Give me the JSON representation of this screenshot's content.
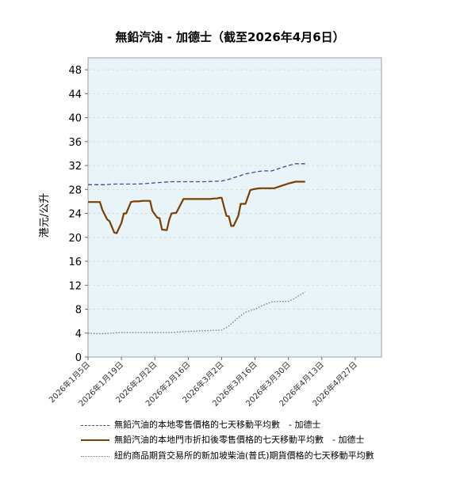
{
  "chart_data": {
    "type": "line",
    "title": "無鉛汽油 - 加德士（截至2026年4月6日）",
    "ylabel": "港元/公升",
    "xlabel": "",
    "ylim": [
      0,
      50
    ],
    "yticks": [
      0,
      4,
      8,
      12,
      16,
      20,
      24,
      28,
      32,
      36,
      40,
      44,
      48
    ],
    "x_range": [
      "2026-01-05",
      "2026-05-08"
    ],
    "xtick_dates": [
      "2026-01-05",
      "2026-01-19",
      "2026-02-02",
      "2026-02-16",
      "2026-03-02",
      "2026-03-16",
      "2026-03-30",
      "2026-04-13",
      "2026-04-27"
    ],
    "xtick_labels": [
      "2026年1月5日",
      "2026年1月19日",
      "2026年2月2日",
      "2026年2月16日",
      "2026年3月2日",
      "2026年3月16日",
      "2026年3月30日",
      "2026年4月13日",
      "2026年4月27日"
    ],
    "grid": true,
    "plot_background": "#e8f4f8",
    "series": [
      {
        "name": "無鉛汽油的本地零售價格的七天移動平均數　- 加德士",
        "color": "#44488f",
        "style": "dashed",
        "x": [
          "2026-01-05",
          "2026-01-12",
          "2026-01-16",
          "2026-01-26",
          "2026-02-02",
          "2026-02-09",
          "2026-02-16",
          "2026-02-23",
          "2026-03-02",
          "2026-03-05",
          "2026-03-09",
          "2026-03-12",
          "2026-03-16",
          "2026-03-19",
          "2026-03-23",
          "2026-03-26",
          "2026-03-30",
          "2026-04-02",
          "2026-04-06"
        ],
        "values": [
          28.8,
          28.8,
          28.9,
          28.9,
          29.1,
          29.3,
          29.3,
          29.3,
          29.4,
          29.7,
          30.2,
          30.6,
          30.9,
          31.1,
          31.1,
          31.5,
          32.0,
          32.3,
          32.3
        ]
      },
      {
        "name": "無鉛汽油的本地門市折扣後零售價格的七天移動平均數　- 加德士",
        "color": "#7b3f00",
        "style": "solid",
        "x": [
          "2026-01-05",
          "2026-01-08",
          "2026-01-10",
          "2026-01-11",
          "2026-01-13",
          "2026-01-14",
          "2026-01-16",
          "2026-01-17",
          "2026-01-19",
          "2026-01-20",
          "2026-01-21",
          "2026-01-23",
          "2026-01-24",
          "2026-01-26",
          "2026-01-28",
          "2026-01-30",
          "2026-01-31",
          "2026-02-01",
          "2026-02-03",
          "2026-02-04",
          "2026-02-05",
          "2026-02-07",
          "2026-02-08",
          "2026-02-09",
          "2026-02-11",
          "2026-02-14",
          "2026-02-18",
          "2026-02-21",
          "2026-02-23",
          "2026-02-25",
          "2026-02-27",
          "2026-02-28",
          "2026-03-01",
          "2026-03-02",
          "2026-03-04",
          "2026-03-05",
          "2026-03-06",
          "2026-03-07",
          "2026-03-09",
          "2026-03-10",
          "2026-03-12",
          "2026-03-14",
          "2026-03-16",
          "2026-03-18",
          "2026-03-21",
          "2026-03-24",
          "2026-03-27",
          "2026-03-30",
          "2026-04-02",
          "2026-04-06"
        ],
        "values": [
          25.9,
          25.9,
          25.9,
          24.6,
          23.0,
          22.7,
          20.8,
          20.7,
          22.4,
          24.0,
          24.0,
          25.9,
          26.0,
          26.0,
          26.1,
          26.1,
          26.1,
          24.4,
          23.3,
          23.2,
          21.3,
          21.2,
          22.9,
          24.0,
          24.1,
          26.4,
          26.4,
          26.4,
          26.4,
          26.4,
          26.5,
          26.5,
          26.6,
          26.6,
          23.6,
          23.5,
          21.9,
          21.9,
          23.6,
          25.6,
          25.6,
          27.9,
          28.1,
          28.2,
          28.2,
          28.2,
          28.6,
          29.0,
          29.3,
          29.3
        ]
      },
      {
        "name": "紐約商品期貨交易所的新加坡柴油(普氏)期貨價格的七天移動平均數",
        "color": "#6c7e8e",
        "style": "dotted",
        "x": [
          "2026-01-05",
          "2026-01-09",
          "2026-01-12",
          "2026-01-19",
          "2026-01-26",
          "2026-02-02",
          "2026-02-09",
          "2026-02-12",
          "2026-02-16",
          "2026-02-23",
          "2026-03-02",
          "2026-03-05",
          "2026-03-09",
          "2026-03-12",
          "2026-03-16",
          "2026-03-19",
          "2026-03-23",
          "2026-03-26",
          "2026-03-30",
          "2026-04-02",
          "2026-04-06"
        ],
        "values": [
          4.0,
          3.9,
          3.9,
          4.1,
          4.1,
          4.1,
          4.1,
          4.2,
          4.3,
          4.4,
          4.5,
          5.2,
          6.6,
          7.5,
          8.0,
          8.6,
          9.2,
          9.3,
          9.3,
          9.9,
          10.9
        ]
      }
    ]
  }
}
